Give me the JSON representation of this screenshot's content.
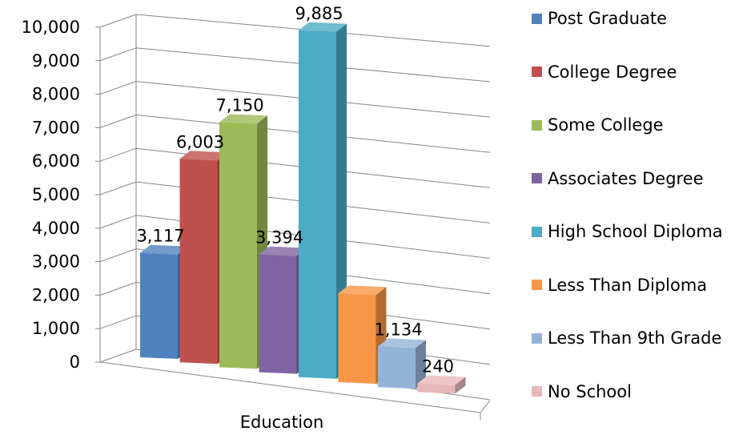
{
  "chart_data": {
    "type": "bar",
    "title": "",
    "xlabel": "Education",
    "ylabel": "",
    "ylim": [
      0,
      10000
    ],
    "yticks": [
      "0",
      "1,000",
      "2,000",
      "3,000",
      "4,000",
      "5,000",
      "6,000",
      "7,000",
      "8,000",
      "9,000",
      "10,000"
    ],
    "grid": true,
    "legend_position": "right",
    "series": [
      {
        "name": "Post Graduate",
        "value": 3117,
        "label": "3,117",
        "color": "#4F81BD"
      },
      {
        "name": "College Degree",
        "value": 6003,
        "label": "6,003",
        "color": "#C0504D"
      },
      {
        "name": "Some College",
        "value": 7150,
        "label": "7,150",
        "color": "#9BBB59"
      },
      {
        "name": "Associates Degree",
        "value": 3394,
        "label": "3,394",
        "color": "#8064A2"
      },
      {
        "name": "High School Diploma",
        "value": 9885,
        "label": "9,885",
        "color": "#4BACC6"
      },
      {
        "name": "Less Than Diploma",
        "value": 2500,
        "label": "",
        "color": "#F79646"
      },
      {
        "name": "Less Than 9th Grade",
        "value": 1134,
        "label": "1,134",
        "color": "#95B3D7"
      },
      {
        "name": "No School",
        "value": 240,
        "label": "240",
        "color": "#E6B9B8"
      }
    ]
  }
}
